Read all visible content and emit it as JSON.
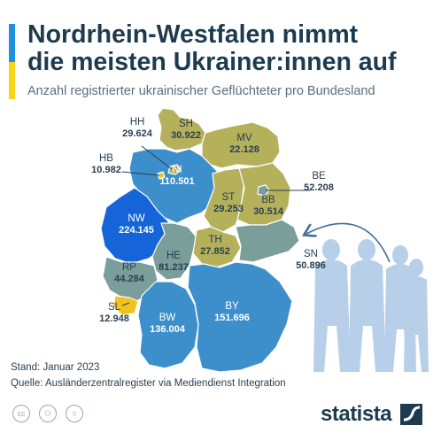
{
  "header": {
    "title_line1": "Nordrhein-Westfalen nimmt",
    "title_line2": "die meisten Ukrainer:innen auf",
    "subtitle": "Anzahl registrierter ukrainischer Geflüchteter pro Bundesland"
  },
  "chart_data": {
    "type": "choropleth",
    "title": "Nordrhein-Westfalen nimmt die meisten Ukrainer:innen auf",
    "subtitle": "Anzahl registrierter ukrainischer Geflüchteter pro Bundesland",
    "regions": [
      {
        "code": "NW",
        "value": 224145,
        "label": "224.145",
        "color": "#1565d8"
      },
      {
        "code": "BY",
        "value": 151696,
        "label": "151.696",
        "color": "#3d8fcb"
      },
      {
        "code": "BW",
        "value": 136004,
        "label": "136.004",
        "color": "#3d8fcb"
      },
      {
        "code": "NI",
        "value": 110501,
        "label": "110.501",
        "color": "#3d8fcb"
      },
      {
        "code": "HE",
        "value": 81237,
        "label": "81.237",
        "color": "#7a9e9a"
      },
      {
        "code": "BE",
        "value": 52208,
        "label": "52.208",
        "color": "#7a9e9a"
      },
      {
        "code": "SN",
        "value": 50896,
        "label": "50.896",
        "color": "#7a9e9a"
      },
      {
        "code": "RP",
        "value": 44284,
        "label": "44.284",
        "color": "#7a9e9a"
      },
      {
        "code": "SH",
        "value": 30922,
        "label": "30.922",
        "color": "#b5b05a"
      },
      {
        "code": "BB",
        "value": 30514,
        "label": "30.514",
        "color": "#b5b05a"
      },
      {
        "code": "HH",
        "value": 29624,
        "label": "29.624",
        "color": "#b5b05a"
      },
      {
        "code": "ST",
        "value": 29253,
        "label": "29.253",
        "color": "#b5b05a"
      },
      {
        "code": "TH",
        "value": 27852,
        "label": "27.852",
        "color": "#b5b05a"
      },
      {
        "code": "MV",
        "value": 22128,
        "label": "22.128",
        "color": "#b5b05a"
      },
      {
        "code": "SL",
        "value": 12948,
        "label": "12.948",
        "color": "#f2c21f"
      },
      {
        "code": "HB",
        "value": 10982,
        "label": "10.982",
        "color": "#f2c21f"
      }
    ]
  },
  "footer": {
    "stand": "Stand: Januar 2023",
    "quelle": "Quelle: Ausländerzentralregister via Mediendienst Integration",
    "brand": "statista"
  },
  "icons": [
    "cc-icon",
    "person-icon",
    "equals-icon",
    "statista-logo-icon",
    "refugees-silhouette-icon",
    "arrow-icon"
  ]
}
